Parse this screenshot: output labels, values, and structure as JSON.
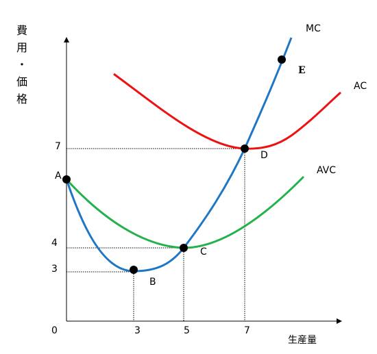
{
  "y_axis_label": "費用・価格",
  "x_axis_label": "生産量",
  "origin": "0",
  "x_ticks": [
    "3",
    "5",
    "7"
  ],
  "y_ticks": [
    "7",
    "4",
    "3"
  ],
  "curves": [
    {
      "label": "MC"
    },
    {
      "label": "AC"
    },
    {
      "label": "AVC"
    }
  ],
  "points": [
    "A",
    "B",
    "C",
    "D",
    "E"
  ]
}
